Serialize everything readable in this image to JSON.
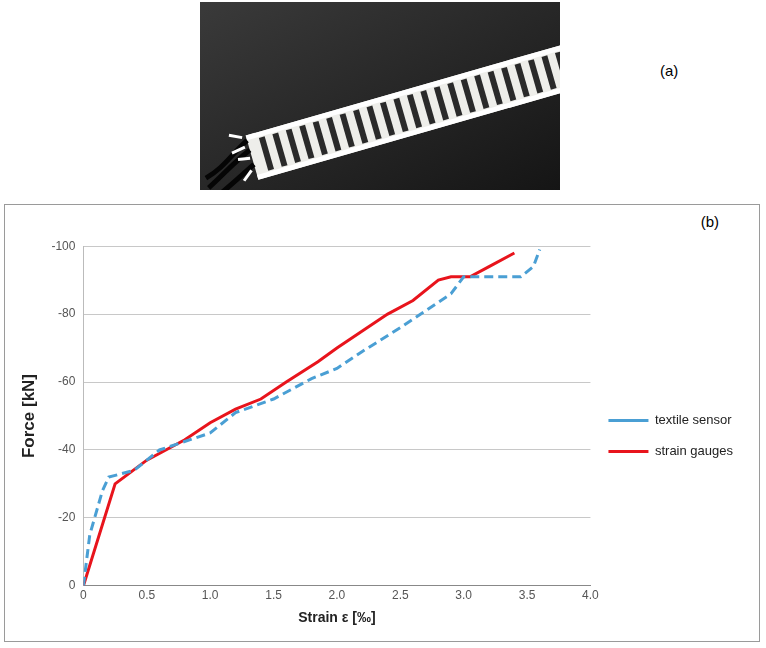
{
  "panel_labels": [
    "(a)",
    "(b)"
  ],
  "chart_data": {
    "type": "line",
    "x_label": "Strain ε [‰]",
    "y_label": "Force [kN]",
    "xlim": [
      0,
      4
    ],
    "xticks": [
      0,
      0.5,
      {
        "value": 1,
        "label": "1.0"
      },
      1.5,
      {
        "value": 2,
        "label": "2.0"
      },
      2.5,
      {
        "value": 3,
        "label": "3.0"
      },
      3.5,
      {
        "value": 4,
        "label": "4.0"
      }
    ],
    "ylim": [
      0,
      -100
    ],
    "yticks": [
      0,
      -20,
      -40,
      -60,
      -80,
      -100
    ],
    "grid": "y",
    "legend": "right",
    "series": [
      {
        "name": "textile sensor",
        "color": "#4a9fd4",
        "line_style": "dashed",
        "x": [
          0,
          0.05,
          0.15,
          0.2,
          0.4,
          0.6,
          1.0,
          1.2,
          1.5,
          1.8,
          2.0,
          2.2,
          2.5,
          2.7,
          2.9,
          3.0,
          3.1,
          3.45,
          3.55,
          3.6
        ],
        "values": [
          0,
          -15,
          -28,
          -32,
          -34,
          -40,
          -45,
          -51,
          -55,
          -61,
          -64,
          -69,
          -76,
          -81,
          -86,
          -91,
          -91,
          -91,
          -94,
          -99
        ]
      },
      {
        "name": "strain gauges",
        "color": "#e8141c",
        "line_style": "solid",
        "x": [
          0,
          0.25,
          0.5,
          0.8,
          1.0,
          1.2,
          1.4,
          1.6,
          1.85,
          2.0,
          2.2,
          2.4,
          2.6,
          2.8,
          2.9,
          3.05,
          3.2,
          3.4
        ],
        "values": [
          0,
          -30,
          -37,
          -43,
          -48,
          -52,
          -55,
          -60,
          -66,
          -70,
          -75,
          -80,
          -84,
          -90,
          -91,
          -91,
          -94,
          -98
        ]
      }
    ]
  }
}
